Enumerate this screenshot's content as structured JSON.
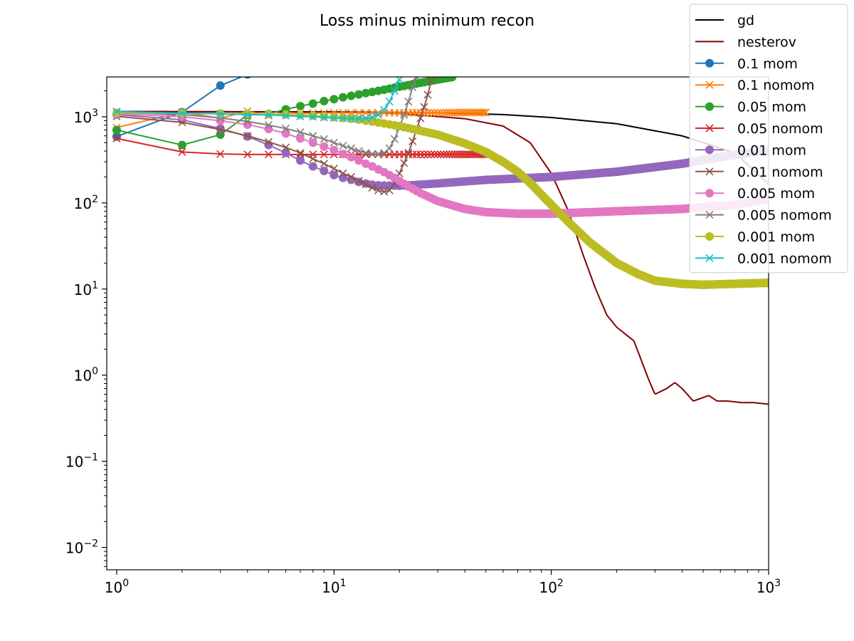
{
  "chart_data": {
    "type": "line",
    "title": "Loss minus minimum recon",
    "xlabel": "",
    "ylabel": "",
    "xscale": "log",
    "yscale": "log",
    "xlim": [
      0.9,
      1000
    ],
    "ylim": [
      0.0055,
      2900
    ],
    "x_ticks": [
      {
        "base": "10",
        "exp": "0",
        "value": 1
      },
      {
        "base": "10",
        "exp": "1",
        "value": 10
      },
      {
        "base": "10",
        "exp": "2",
        "value": 100
      },
      {
        "base": "10",
        "exp": "3",
        "value": 1000
      }
    ],
    "y_ticks": [
      {
        "base": "10",
        "exp": "3",
        "value": 1000
      },
      {
        "base": "10",
        "exp": "2",
        "value": 100
      },
      {
        "base": "10",
        "exp": "1",
        "value": 10
      },
      {
        "base": "10",
        "exp": "0",
        "value": 1
      },
      {
        "base": "10",
        "exp": "−1",
        "value": 0.1
      },
      {
        "base": "10",
        "exp": "−2",
        "value": 0.01
      }
    ],
    "grid": false,
    "legend_position": "top-right",
    "series": [
      {
        "name": "gd",
        "color": "#000000",
        "marker": "none",
        "points": [
          [
            1,
            1150
          ],
          [
            10,
            1140
          ],
          [
            30,
            1110
          ],
          [
            60,
            1060
          ],
          [
            100,
            980
          ],
          [
            200,
            830
          ],
          [
            400,
            600
          ],
          [
            700,
            380
          ],
          [
            1000,
            165
          ]
        ]
      },
      {
        "name": "nesterov",
        "color": "#800000",
        "marker": "none",
        "points": [
          [
            1,
            1150
          ],
          [
            10,
            1130
          ],
          [
            20,
            1090
          ],
          [
            40,
            950
          ],
          [
            60,
            780
          ],
          [
            80,
            500
          ],
          [
            100,
            220
          ],
          [
            120,
            80
          ],
          [
            140,
            25
          ],
          [
            160,
            10
          ],
          [
            180,
            5
          ],
          [
            200,
            3.6
          ],
          [
            240,
            2.5
          ],
          [
            280,
            0.9
          ],
          [
            300,
            0.6
          ],
          [
            340,
            0.7
          ],
          [
            370,
            0.82
          ],
          [
            400,
            0.7
          ],
          [
            450,
            0.5
          ],
          [
            500,
            0.55
          ],
          [
            530,
            0.58
          ],
          [
            580,
            0.5
          ],
          [
            650,
            0.5
          ],
          [
            750,
            0.48
          ],
          [
            850,
            0.48
          ],
          [
            1000,
            0.46
          ]
        ]
      },
      {
        "name": "0.1 mom",
        "color": "#1f77b4",
        "marker": "circle",
        "points": [
          [
            1,
            590
          ],
          [
            2,
            1130
          ],
          [
            3,
            2300
          ],
          [
            4,
            3100
          ]
        ]
      },
      {
        "name": "0.1 nomom",
        "color": "#ff7f0e",
        "marker": "x",
        "points": [
          [
            1,
            750
          ],
          [
            2,
            1130
          ],
          [
            3,
            960
          ],
          [
            4,
            1160
          ],
          [
            5,
            1030
          ],
          [
            6,
            1120
          ],
          [
            7,
            1090
          ],
          [
            8,
            1100
          ],
          [
            10,
            1110
          ],
          [
            15,
            1110
          ],
          [
            20,
            1110
          ],
          [
            30,
            1115
          ],
          [
            40,
            1120
          ],
          [
            50,
            1120
          ]
        ]
      },
      {
        "name": "0.05 mom",
        "color": "#2ca02c",
        "marker": "circle",
        "points": [
          [
            1,
            700
          ],
          [
            2,
            470
          ],
          [
            3,
            620
          ],
          [
            4,
            1050
          ],
          [
            5,
            1080
          ],
          [
            6,
            1220
          ],
          [
            7,
            1330
          ],
          [
            8,
            1420
          ],
          [
            9,
            1520
          ],
          [
            10,
            1600
          ],
          [
            11,
            1680
          ],
          [
            12,
            1750
          ],
          [
            13,
            1820
          ],
          [
            14,
            1880
          ],
          [
            15,
            1940
          ],
          [
            16,
            2000
          ],
          [
            17,
            2060
          ],
          [
            18,
            2120
          ],
          [
            19,
            2180
          ],
          [
            20,
            2230
          ],
          [
            25,
            2480
          ],
          [
            30,
            2700
          ],
          [
            35,
            2890
          ]
        ]
      },
      {
        "name": "0.05 nomom",
        "color": "#d62728",
        "marker": "x",
        "points": [
          [
            1,
            560
          ],
          [
            2,
            390
          ],
          [
            3,
            370
          ],
          [
            4,
            365
          ],
          [
            5,
            365
          ],
          [
            6,
            365
          ],
          [
            7,
            365
          ],
          [
            8,
            365
          ],
          [
            10,
            365
          ],
          [
            15,
            365
          ],
          [
            20,
            365
          ],
          [
            30,
            365
          ],
          [
            40,
            365
          ],
          [
            50,
            365
          ]
        ]
      },
      {
        "name": "0.01 mom",
        "color": "#9467bd",
        "marker": "circle",
        "points": [
          [
            1,
            1060
          ],
          [
            2,
            920
          ],
          [
            3,
            730
          ],
          [
            4,
            590
          ],
          [
            5,
            470
          ],
          [
            6,
            380
          ],
          [
            7,
            310
          ],
          [
            8,
            265
          ],
          [
            9,
            235
          ],
          [
            10,
            210
          ],
          [
            11,
            195
          ],
          [
            12,
            185
          ],
          [
            13,
            175
          ],
          [
            14,
            168
          ],
          [
            15,
            163
          ],
          [
            16,
            160
          ],
          [
            20,
            158
          ],
          [
            30,
            168
          ],
          [
            50,
            185
          ],
          [
            100,
            200
          ],
          [
            200,
            230
          ],
          [
            400,
            285
          ],
          [
            600,
            340
          ],
          [
            800,
            380
          ],
          [
            1000,
            400
          ]
        ]
      },
      {
        "name": "0.01 nomom",
        "color": "#8c564b",
        "marker": "x",
        "points": [
          [
            1,
            1010
          ],
          [
            2,
            860
          ],
          [
            3,
            710
          ],
          [
            4,
            600
          ],
          [
            5,
            510
          ],
          [
            6,
            440
          ],
          [
            7,
            380
          ],
          [
            8,
            325
          ],
          [
            9,
            285
          ],
          [
            10,
            250
          ],
          [
            11,
            220
          ],
          [
            12,
            200
          ],
          [
            13,
            180
          ],
          [
            14,
            165
          ],
          [
            15,
            150
          ],
          [
            16,
            140
          ],
          [
            17,
            135
          ],
          [
            18,
            140
          ],
          [
            19,
            170
          ],
          [
            20,
            220
          ],
          [
            21,
            290
          ],
          [
            22,
            380
          ],
          [
            23,
            520
          ],
          [
            24,
            720
          ],
          [
            25,
            960
          ],
          [
            26,
            1300
          ],
          [
            27,
            1800
          ],
          [
            28,
            2600
          ]
        ]
      },
      {
        "name": "0.005 mom",
        "color": "#e377c2",
        "marker": "circle",
        "points": [
          [
            1,
            1080
          ],
          [
            2,
            1000
          ],
          [
            3,
            900
          ],
          [
            4,
            810
          ],
          [
            5,
            720
          ],
          [
            6,
            640
          ],
          [
            7,
            560
          ],
          [
            8,
            500
          ],
          [
            9,
            450
          ],
          [
            10,
            410
          ],
          [
            11,
            370
          ],
          [
            12,
            340
          ],
          [
            13,
            310
          ],
          [
            14,
            285
          ],
          [
            15,
            265
          ],
          [
            16,
            245
          ],
          [
            17,
            228
          ],
          [
            18,
            210
          ],
          [
            19,
            195
          ],
          [
            20,
            180
          ],
          [
            22,
            155
          ],
          [
            25,
            130
          ],
          [
            30,
            105
          ],
          [
            40,
            85
          ],
          [
            50,
            78
          ],
          [
            70,
            75
          ],
          [
            100,
            75
          ],
          [
            200,
            80
          ],
          [
            400,
            85
          ],
          [
            700,
            95
          ],
          [
            1000,
            110
          ]
        ]
      },
      {
        "name": "0.005 nomom",
        "color": "#7f7f7f",
        "marker": "x",
        "points": [
          [
            1,
            1120
          ],
          [
            2,
            1060
          ],
          [
            3,
            970
          ],
          [
            4,
            880
          ],
          [
            5,
            800
          ],
          [
            6,
            730
          ],
          [
            7,
            660
          ],
          [
            8,
            600
          ],
          [
            9,
            550
          ],
          [
            10,
            500
          ],
          [
            11,
            460
          ],
          [
            12,
            430
          ],
          [
            13,
            400
          ],
          [
            14,
            380
          ],
          [
            15,
            370
          ],
          [
            16,
            370
          ],
          [
            17,
            380
          ],
          [
            18,
            430
          ],
          [
            19,
            550
          ],
          [
            20,
            750
          ],
          [
            21,
            1050
          ],
          [
            22,
            1500
          ],
          [
            23,
            2200
          ],
          [
            24,
            2900
          ]
        ]
      },
      {
        "name": "0.001 mom",
        "color": "#bcbd22",
        "marker": "circle",
        "points": [
          [
            1,
            1110
          ],
          [
            2,
            1100
          ],
          [
            3,
            1090
          ],
          [
            4,
            1080
          ],
          [
            5,
            1070
          ],
          [
            6,
            1060
          ],
          [
            7,
            1045
          ],
          [
            8,
            1030
          ],
          [
            9,
            1010
          ],
          [
            10,
            990
          ],
          [
            12,
            950
          ],
          [
            15,
            880
          ],
          [
            20,
            780
          ],
          [
            30,
            620
          ],
          [
            40,
            490
          ],
          [
            50,
            390
          ],
          [
            60,
            300
          ],
          [
            70,
            230
          ],
          [
            80,
            170
          ],
          [
            90,
            125
          ],
          [
            100,
            95
          ],
          [
            120,
            60
          ],
          [
            150,
            35
          ],
          [
            200,
            20
          ],
          [
            250,
            15
          ],
          [
            300,
            12.5
          ],
          [
            400,
            11.5
          ],
          [
            500,
            11.2
          ],
          [
            700,
            11.5
          ],
          [
            1000,
            11.8
          ]
        ]
      },
      {
        "name": "0.001 nomom",
        "color": "#17becf",
        "marker": "x",
        "points": [
          [
            1,
            1150
          ],
          [
            2,
            1100
          ],
          [
            3,
            1080
          ],
          [
            4,
            1060
          ],
          [
            5,
            1050
          ],
          [
            6,
            1030
          ],
          [
            7,
            1010
          ],
          [
            8,
            1000
          ],
          [
            9,
            980
          ],
          [
            10,
            970
          ],
          [
            11,
            960
          ],
          [
            12,
            950
          ],
          [
            13,
            950
          ],
          [
            14,
            960
          ],
          [
            15,
            990
          ],
          [
            16,
            1050
          ],
          [
            17,
            1200
          ],
          [
            18,
            1500
          ],
          [
            19,
            2000
          ],
          [
            20,
            2700
          ]
        ]
      }
    ]
  }
}
